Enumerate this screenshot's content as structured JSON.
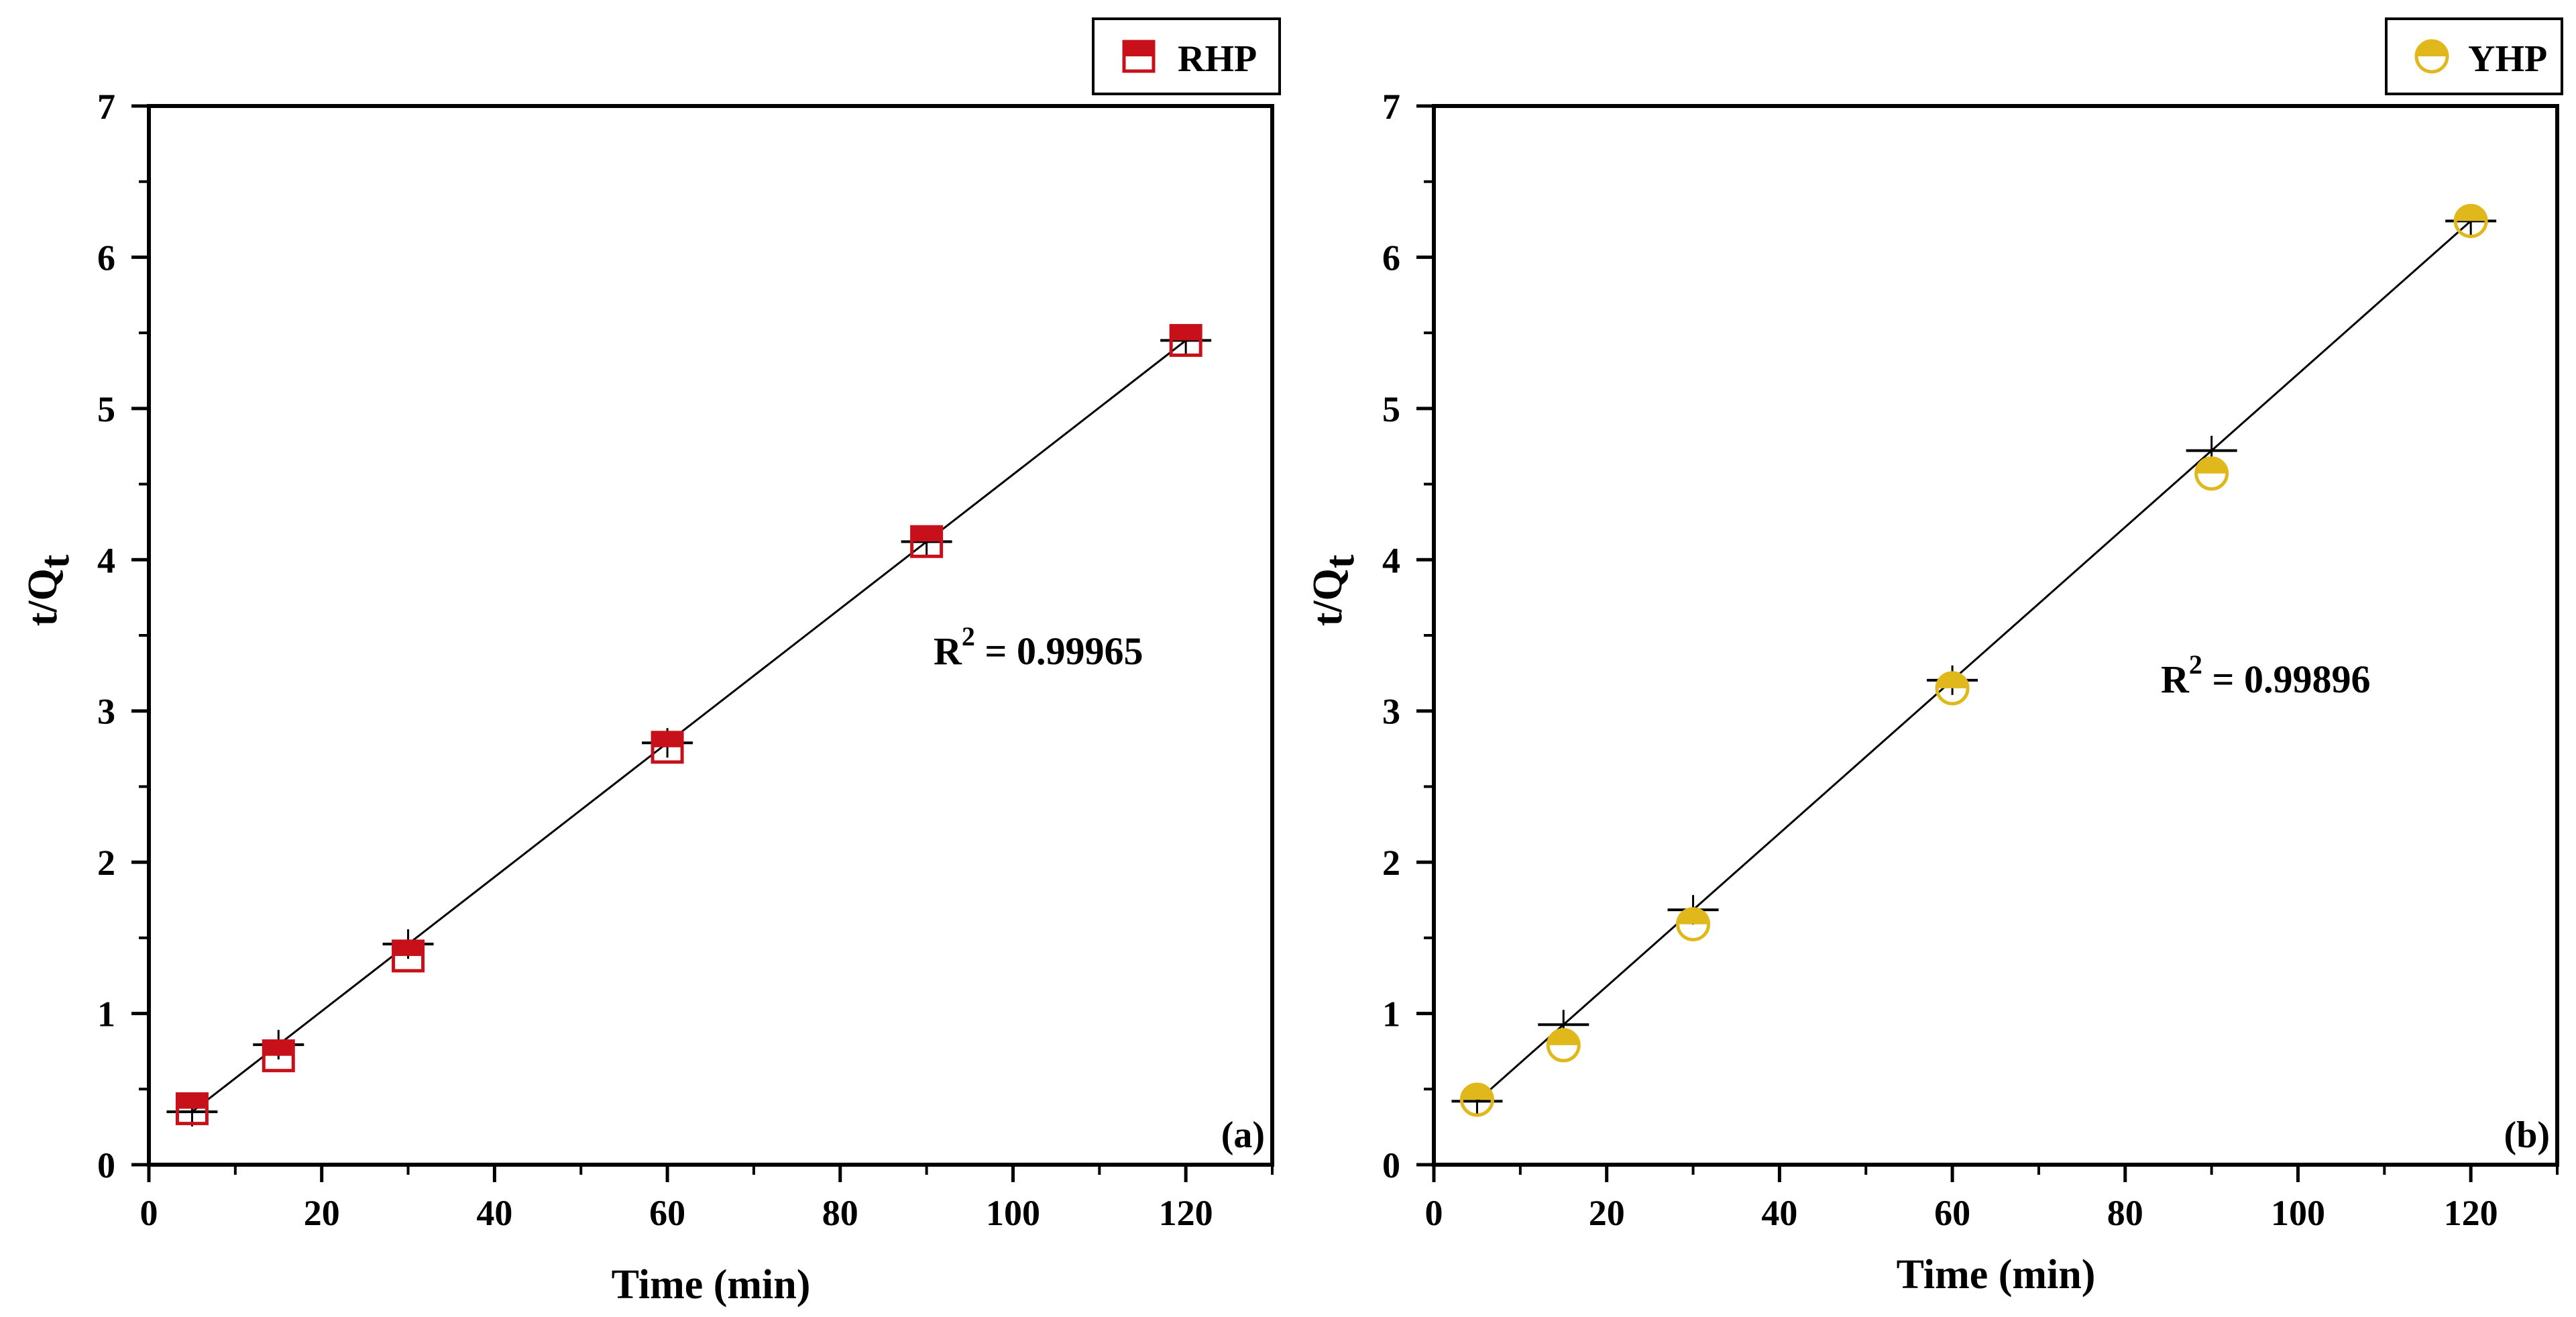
{
  "chart_data": [
    {
      "type": "scatter",
      "panel_label": "(a)",
      "xlabel": "Time (min)",
      "ylabel_main": "t/Q",
      "ylabel_sub": "t",
      "xlim": [
        0,
        130
      ],
      "ylim": [
        0,
        7
      ],
      "xticks": [
        0,
        20,
        40,
        60,
        80,
        100,
        120
      ],
      "xtick_labels": [
        "0",
        "20",
        "40",
        "60",
        "80",
        "100",
        "120"
      ],
      "yticks": [
        0,
        1,
        2,
        3,
        4,
        5,
        6,
        7
      ],
      "ytick_labels": [
        "0",
        "1",
        "2",
        "3",
        "4",
        "5",
        "6",
        "7"
      ],
      "grid": false,
      "legend_position": "top-right",
      "series": [
        {
          "name": "RHP",
          "marker": "half-filled-square",
          "color": "#c8101a",
          "x": [
            5,
            15,
            30,
            60,
            90,
            120
          ],
          "y": [
            0.37,
            0.72,
            1.38,
            2.76,
            4.12,
            5.45
          ]
        }
      ],
      "fit": {
        "type": "linear",
        "x": [
          5,
          120
        ],
        "y": [
          0.35,
          5.45
        ],
        "r2_prefix": "R",
        "r2_sup": "2",
        "r2_value": " = 0.99965",
        "annotation_anchor": [
          90,
          3.43
        ]
      }
    },
    {
      "type": "scatter",
      "panel_label": "(b)",
      "xlabel": "Time (min)",
      "ylabel_main": "t/Q",
      "ylabel_sub": "t",
      "xlim": [
        0,
        130
      ],
      "ylim": [
        0,
        7
      ],
      "xticks": [
        0,
        20,
        40,
        60,
        80,
        100,
        120
      ],
      "xtick_labels": [
        "0",
        "20",
        "40",
        "60",
        "80",
        "100",
        "120"
      ],
      "yticks": [
        0,
        1,
        2,
        3,
        4,
        5,
        6,
        7
      ],
      "ytick_labels": [
        "0",
        "1",
        "2",
        "3",
        "4",
        "5",
        "6",
        "7"
      ],
      "grid": false,
      "legend_position": "top-right",
      "series": [
        {
          "name": "YHP",
          "marker": "half-filled-circle",
          "color": "#e0b81c",
          "x": [
            5,
            15,
            30,
            60,
            90,
            120
          ],
          "y": [
            0.43,
            0.79,
            1.59,
            3.15,
            4.57,
            6.24
          ]
        }
      ],
      "fit": {
        "type": "linear",
        "x": [
          5,
          120
        ],
        "y": [
          0.42,
          6.24
        ],
        "r2_prefix": "R",
        "r2_sup": "2",
        "r2_value": " = 0.99896",
        "annotation_anchor": [
          84,
          3.2
        ]
      }
    }
  ]
}
